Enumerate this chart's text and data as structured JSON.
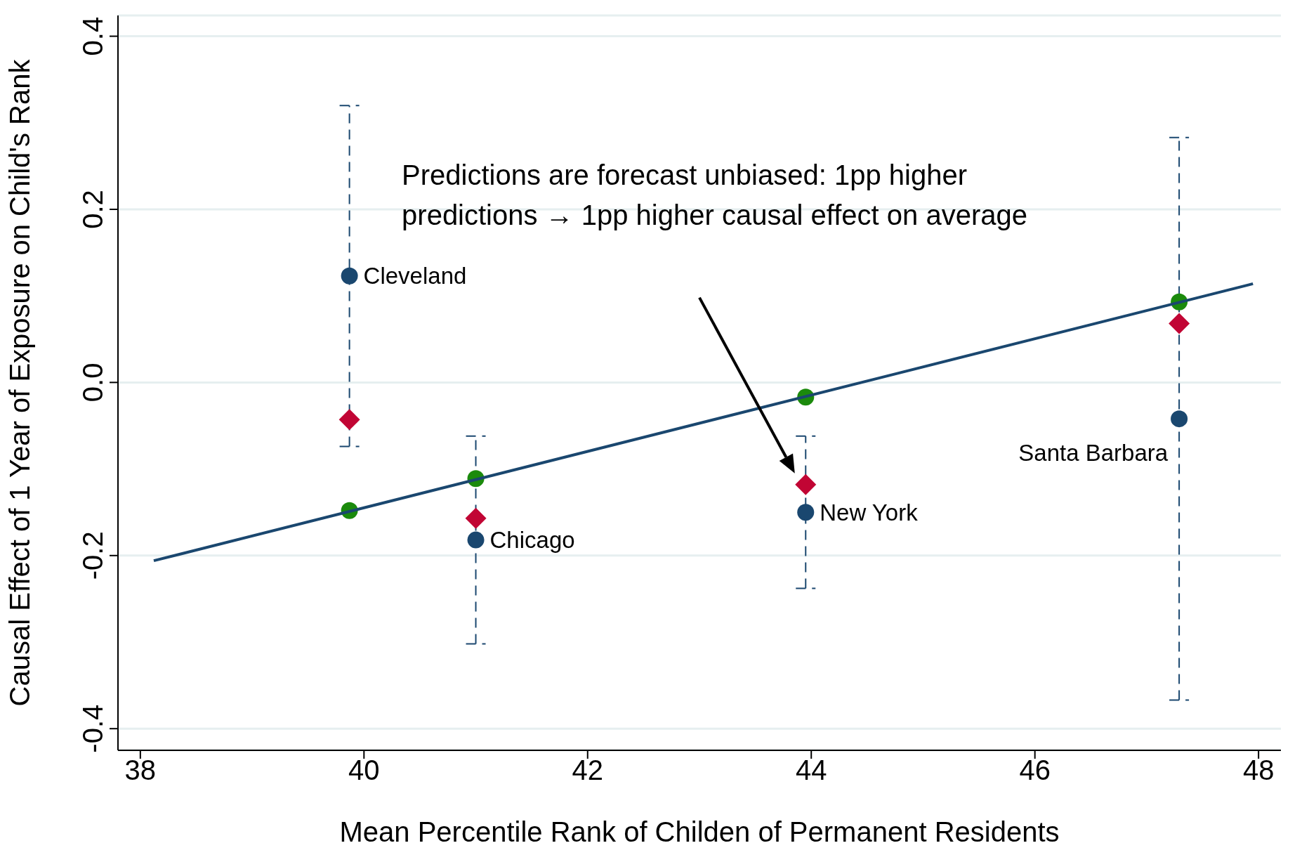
{
  "chart_data": {
    "type": "scatter",
    "xlabel": "Mean Percentile Rank of Childen of Permanent Residents",
    "ylabel": "Causal Effect of 1 Year of Exposure on Child's Rank",
    "xlim": [
      37.8,
      48.2
    ],
    "xticks": [
      38,
      40,
      42,
      44,
      46,
      48
    ],
    "ylim": [
      -0.425,
      0.424
    ],
    "yticks": [
      -0.4,
      -0.2,
      {
        "value": 0,
        "label": "0.0"
      },
      0.2,
      0.4
    ],
    "grid": "y",
    "series": [
      {
        "color": "#1a476f",
        "marker": "circle",
        "line_style": "dashed",
        "x": [
          39.87,
          41.0,
          43.95,
          47.29
        ],
        "values": [
          0.123,
          -0.182,
          -0.15,
          -0.042
        ],
        "errors": [
          0.197,
          0.12,
          0.088,
          0.325
        ]
      },
      {
        "color": "#c10534",
        "marker": "diamond",
        "x": [
          39.87,
          41.0,
          43.95,
          47.29
        ],
        "values": [
          -0.043,
          -0.157,
          -0.118,
          0.068
        ]
      },
      {
        "color": "#1b8a0c",
        "marker": "circle",
        "x": [
          39.87,
          41.0,
          43.95,
          47.29
        ],
        "values": [
          -0.148,
          -0.111,
          -0.017,
          0.093
        ]
      },
      {
        "type": "line",
        "color": "#1a476f",
        "marker": "none",
        "x": [
          38.12,
          47.95
        ],
        "values": [
          -0.206,
          0.114
        ]
      }
    ],
    "annotations": [
      {
        "text": "Cleveland",
        "x": 39.87,
        "y": 0.123
      },
      {
        "text": "Chicago",
        "x": 41.0,
        "y": -0.182
      },
      {
        "text": "New York",
        "x": 43.95,
        "y": -0.15
      },
      {
        "text": "Santa Barbara",
        "x": 47.29,
        "y": -0.042
      },
      "Predictions are forecast unbiased: 1pp higher predictions → 1pp higher causal effect on average"
    ]
  }
}
